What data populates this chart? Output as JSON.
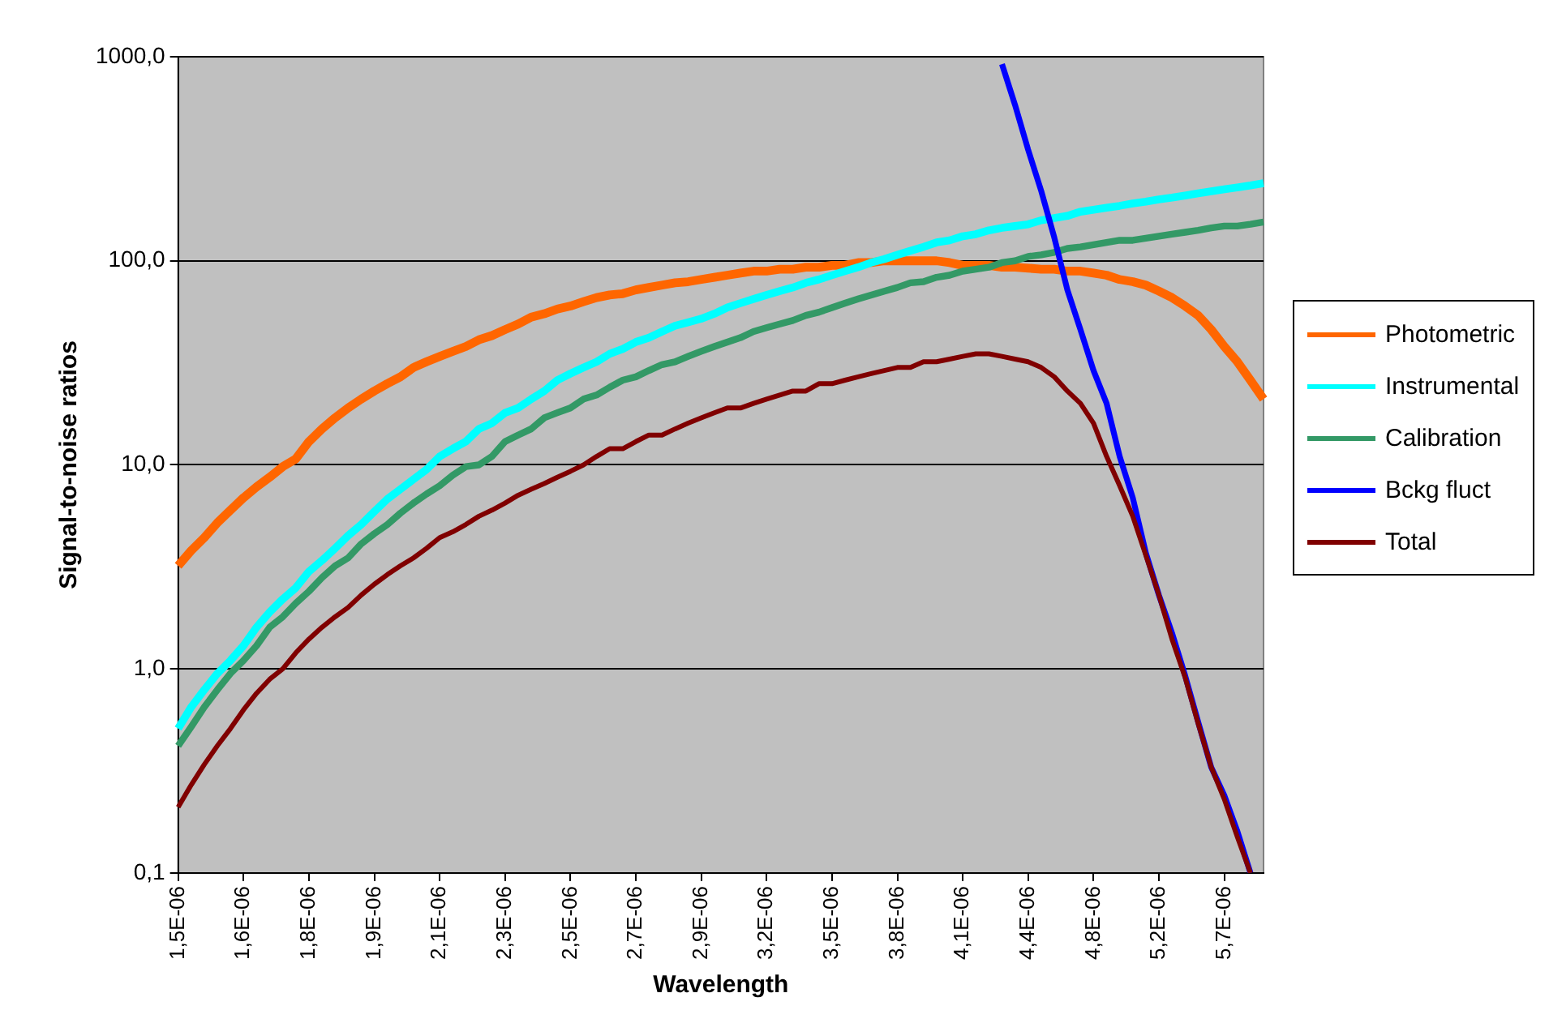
{
  "chart_data": {
    "type": "line",
    "xlabel": "Wavelength",
    "ylabel": "Signal-to-noise ratios",
    "categories": [
      "1,5E-06",
      null,
      null,
      null,
      null,
      "1,6E-06",
      null,
      null,
      null,
      null,
      "1,8E-06",
      null,
      null,
      null,
      null,
      "1,9E-06",
      null,
      null,
      null,
      null,
      "2,1E-06",
      null,
      null,
      null,
      null,
      "2,3E-06",
      null,
      null,
      null,
      null,
      "2,5E-06",
      null,
      null,
      null,
      null,
      "2,7E-06",
      null,
      null,
      null,
      null,
      "2,9E-06",
      null,
      null,
      null,
      null,
      "3,2E-06",
      null,
      null,
      null,
      null,
      "3,5E-06",
      null,
      null,
      null,
      null,
      "3,8E-06",
      null,
      null,
      null,
      null,
      "4,1E-06",
      null,
      null,
      null,
      null,
      "4,4E-06",
      null,
      null,
      null,
      null,
      "4,8E-06",
      null,
      null,
      null,
      null,
      "5,2E-06",
      null,
      null,
      null,
      null,
      "5,7E-06",
      null,
      null,
      null
    ],
    "series": [
      {
        "name": "Photometric",
        "color": "#ff6600",
        "values": [
          3.2,
          3.8,
          4.4,
          5.2,
          6.0,
          6.9,
          7.8,
          8.7,
          9.8,
          10.7,
          13,
          15,
          17,
          19,
          21,
          23,
          25,
          27,
          30,
          32,
          34,
          36,
          38,
          41,
          43,
          46,
          49,
          53,
          55,
          58,
          60,
          63,
          66,
          68,
          69,
          72,
          74,
          76,
          78,
          79,
          81,
          83,
          85,
          87,
          89,
          89,
          91,
          91,
          93,
          93,
          95,
          95,
          98,
          98,
          100,
          100,
          100,
          100,
          100,
          98,
          95,
          95,
          95,
          93,
          93,
          92,
          91,
          91,
          89,
          89,
          87,
          85,
          81,
          79,
          76,
          71,
          66,
          60,
          54,
          46,
          38,
          32,
          26,
          21
        ]
      },
      {
        "name": "Instrumental",
        "color": "#00ffff",
        "values": [
          0.51,
          0.65,
          0.79,
          0.95,
          1.1,
          1.3,
          1.6,
          1.9,
          2.2,
          2.5,
          3.0,
          3.4,
          3.9,
          4.5,
          5.1,
          5.9,
          6.8,
          7.6,
          8.5,
          9.5,
          11,
          12,
          13,
          15,
          16,
          18,
          19,
          21,
          23,
          26,
          28,
          30,
          32,
          35,
          37,
          40,
          42,
          45,
          48,
          50,
          52,
          55,
          59,
          62,
          65,
          68,
          71,
          74,
          78,
          81,
          85,
          89,
          93,
          98,
          102,
          107,
          112,
          117,
          123,
          126,
          132,
          135,
          141,
          145,
          148,
          151,
          158,
          162,
          166,
          174,
          178,
          182,
          186,
          191,
          195,
          200,
          204,
          209,
          214,
          219,
          224,
          229,
          234,
          240
        ]
      },
      {
        "name": "Calibration",
        "color": "#339966",
        "values": [
          0.42,
          0.52,
          0.65,
          0.79,
          0.95,
          1.1,
          1.3,
          1.6,
          1.8,
          2.1,
          2.4,
          2.8,
          3.2,
          3.5,
          4.1,
          4.6,
          5.1,
          5.8,
          6.5,
          7.2,
          7.9,
          8.9,
          9.8,
          10,
          11,
          13,
          14,
          15,
          17,
          18,
          19,
          21,
          22,
          24,
          26,
          27,
          29,
          31,
          32,
          34,
          36,
          38,
          40,
          42,
          45,
          47,
          49,
          51,
          54,
          56,
          59,
          62,
          65,
          68,
          71,
          74,
          78,
          79,
          83,
          85,
          89,
          91,
          93,
          98,
          100,
          105,
          107,
          110,
          115,
          117,
          120,
          123,
          126,
          126,
          129,
          132,
          135,
          138,
          141,
          145,
          148,
          148,
          151,
          155
        ]
      },
      {
        "name": "Bckg fluct",
        "color": "#0000ff",
        "values": [
          null,
          null,
          null,
          null,
          null,
          null,
          null,
          null,
          null,
          null,
          null,
          null,
          null,
          null,
          null,
          null,
          null,
          null,
          null,
          null,
          null,
          null,
          null,
          null,
          null,
          null,
          null,
          null,
          null,
          null,
          null,
          null,
          null,
          null,
          null,
          null,
          null,
          null,
          null,
          null,
          null,
          null,
          null,
          null,
          null,
          null,
          null,
          null,
          null,
          null,
          null,
          null,
          null,
          null,
          null,
          null,
          null,
          null,
          null,
          null,
          null,
          null,
          null,
          920,
          580,
          350,
          220,
          130,
          72,
          46,
          29,
          20,
          11,
          6.9,
          3.7,
          2.3,
          1.5,
          0.93,
          0.55,
          0.33,
          0.24,
          0.16,
          0.1,
          null
        ]
      },
      {
        "name": "Total",
        "color": "#800000",
        "values": [
          0.21,
          0.27,
          0.34,
          0.42,
          0.51,
          0.63,
          0.76,
          0.89,
          1.0,
          1.2,
          1.4,
          1.6,
          1.8,
          2.0,
          2.3,
          2.6,
          2.9,
          3.2,
          3.5,
          3.9,
          4.4,
          4.7,
          5.1,
          5.6,
          6.0,
          6.5,
          7.1,
          7.6,
          8.1,
          8.7,
          9.3,
          10,
          11,
          12,
          12,
          13,
          14,
          14,
          15,
          16,
          17,
          18,
          19,
          19,
          20,
          21,
          22,
          23,
          23,
          25,
          25,
          26,
          27,
          28,
          29,
          30,
          30,
          32,
          32,
          33,
          34,
          35,
          35,
          34,
          33,
          32,
          30,
          27,
          23,
          20,
          16,
          11,
          7.9,
          5.6,
          3.6,
          2.3,
          1.4,
          0.91,
          0.54,
          0.33,
          0.23,
          0.15,
          0.1,
          null
        ]
      }
    ],
    "log": true,
    "ylim": [
      0.1,
      1000
    ],
    "yticks": [
      {
        "value": 0.1,
        "label": "0,1"
      },
      {
        "value": 1,
        "label": "1,0"
      },
      {
        "value": 10,
        "label": "10,0"
      },
      {
        "value": 100,
        "label": "100,0"
      },
      {
        "value": 1000,
        "label": "1000,0"
      }
    ],
    "grid": "y",
    "legend": "right"
  }
}
